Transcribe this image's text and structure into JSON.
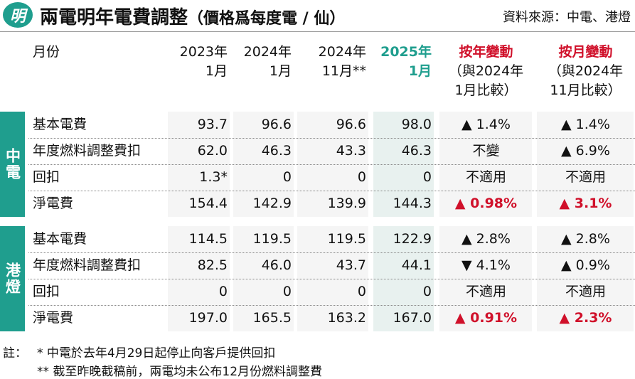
{
  "header": {
    "logo": "明",
    "title": "兩電明年電費調整",
    "title_note": "（價格爲每度電 / 仙）",
    "source": "資料來源：中電、港燈"
  },
  "table": {
    "columns": [
      [
        "月份"
      ],
      [
        "2023年",
        "1月"
      ],
      [
        "2024年",
        "1月"
      ],
      [
        "2024年",
        "11月**"
      ],
      [
        "2025年",
        "1月"
      ],
      [
        "按年變動",
        "（與2024年",
        "1月比較）"
      ],
      [
        "按月變動",
        "（與2024年",
        "11月比較）"
      ]
    ],
    "groups": [
      {
        "name": "中電",
        "rows": [
          [
            "基本電費",
            "93.7",
            "96.6",
            "96.6",
            "98.0",
            "▲ 1.4%",
            "▲ 1.4%"
          ],
          [
            "年度燃料調整費扣",
            "62.0",
            "46.3",
            "43.3",
            "46.3",
            "不變",
            "▲ 6.9%"
          ],
          [
            "回扣",
            "1.3*",
            "0",
            "0",
            "0",
            "不適用",
            "不適用"
          ],
          [
            "淨電費",
            "154.4",
            "142.9",
            "139.9",
            "144.3",
            "▲ 0.98%",
            "▲ 3.1%"
          ]
        ]
      },
      {
        "name": "港燈",
        "rows": [
          [
            "基本電費",
            "114.5",
            "119.5",
            "119.5",
            "122.9",
            "▲ 2.8%",
            "▲ 2.8%"
          ],
          [
            "年度燃料調整費扣",
            "82.5",
            "46.0",
            "43.7",
            "44.1",
            "▼ 4.1%",
            "▲ 0.9%"
          ],
          [
            "回扣",
            "0",
            "0",
            "0",
            "0",
            "不適用",
            "不適用"
          ],
          [
            "淨電費",
            "197.0",
            "165.5",
            "163.2",
            "167.0",
            "▲ 0.91%",
            "▲ 2.3%"
          ]
        ]
      }
    ]
  },
  "notes": [
    "註：",
    "* 中電於去年4月29日起停止向客戶提供回扣",
    "** 截至昨晚截稿前，兩電均未公布12月份燃料調整費"
  ]
}
